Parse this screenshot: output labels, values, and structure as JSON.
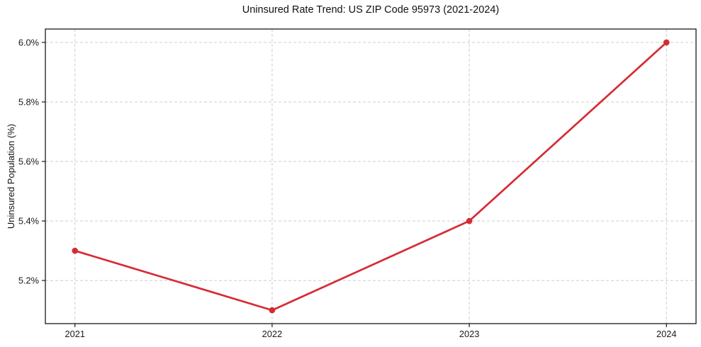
{
  "figure": {
    "background": "#ffffff"
  },
  "chart_data": {
    "type": "line",
    "title": "Uninsured Rate Trend: US ZIP Code 95973 (2021-2024)",
    "xlabel": "",
    "ylabel": "Uninsured Population (%)",
    "categories": [
      2021,
      2022,
      2023,
      2024
    ],
    "values": [
      5.3,
      5.1,
      5.4,
      6.0
    ],
    "xlim": [
      2020.85,
      2024.15
    ],
    "ylim": [
      5.055,
      6.045
    ],
    "x_ticks": [
      {
        "value": 2021,
        "label": "2021"
      },
      {
        "value": 2022,
        "label": "2022"
      },
      {
        "value": 2023,
        "label": "2023"
      },
      {
        "value": 2024,
        "label": "2024"
      }
    ],
    "y_ticks": [
      {
        "value": 5.2,
        "label": "5.2%"
      },
      {
        "value": 5.4,
        "label": "5.4%"
      },
      {
        "value": 5.6,
        "label": "5.6%"
      },
      {
        "value": 5.8,
        "label": "5.8%"
      },
      {
        "value": 6.0,
        "label": "6.0%"
      }
    ],
    "grid": true,
    "grid_style": "dashed",
    "legend": "none",
    "marker": "circle",
    "colors": {
      "line": "#d62b33",
      "marker": "#d62b33",
      "grid": "#cccccc",
      "spine": "#1a1a1a",
      "tick": "#1a1a1a",
      "text": "#111111"
    }
  }
}
